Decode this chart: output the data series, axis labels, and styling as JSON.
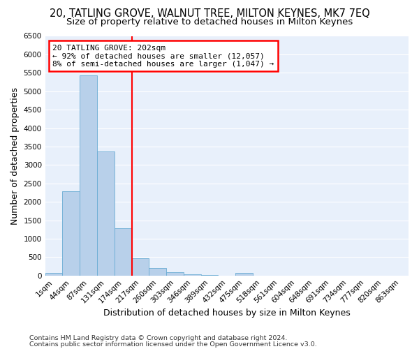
{
  "title": "20, TATLING GROVE, WALNUT TREE, MILTON KEYNES, MK7 7EQ",
  "subtitle": "Size of property relative to detached houses in Milton Keynes",
  "xlabel": "Distribution of detached houses by size in Milton Keynes",
  "ylabel": "Number of detached properties",
  "footnote1": "Contains HM Land Registry data © Crown copyright and database right 2024.",
  "footnote2": "Contains public sector information licensed under the Open Government Licence v3.0.",
  "bar_labels": [
    "1sqm",
    "44sqm",
    "87sqm",
    "131sqm",
    "174sqm",
    "217sqm",
    "260sqm",
    "303sqm",
    "346sqm",
    "389sqm",
    "432sqm",
    "475sqm",
    "518sqm",
    "561sqm",
    "604sqm",
    "648sqm",
    "691sqm",
    "734sqm",
    "777sqm",
    "820sqm",
    "863sqm"
  ],
  "bar_values": [
    70,
    2280,
    5430,
    3370,
    1290,
    470,
    210,
    90,
    40,
    5,
    0,
    70,
    0,
    0,
    0,
    0,
    0,
    0,
    0,
    0,
    0
  ],
  "bar_color": "#b8d0ea",
  "bar_edgecolor": "#6aacd4",
  "vline_x": 5,
  "vline_color": "red",
  "annotation_text": "20 TATLING GROVE: 202sqm\n← 92% of detached houses are smaller (12,057)\n8% of semi-detached houses are larger (1,047) →",
  "annotation_box_edgecolor": "red",
  "ylim": [
    0,
    6500
  ],
  "yticks": [
    0,
    500,
    1000,
    1500,
    2000,
    2500,
    3000,
    3500,
    4000,
    4500,
    5000,
    5500,
    6000,
    6500
  ],
  "bg_color": "#e8f0fb",
  "grid_color": "white",
  "title_fontsize": 10.5,
  "subtitle_fontsize": 9.5,
  "label_fontsize": 9,
  "tick_fontsize": 7.5,
  "footnote_fontsize": 6.8
}
